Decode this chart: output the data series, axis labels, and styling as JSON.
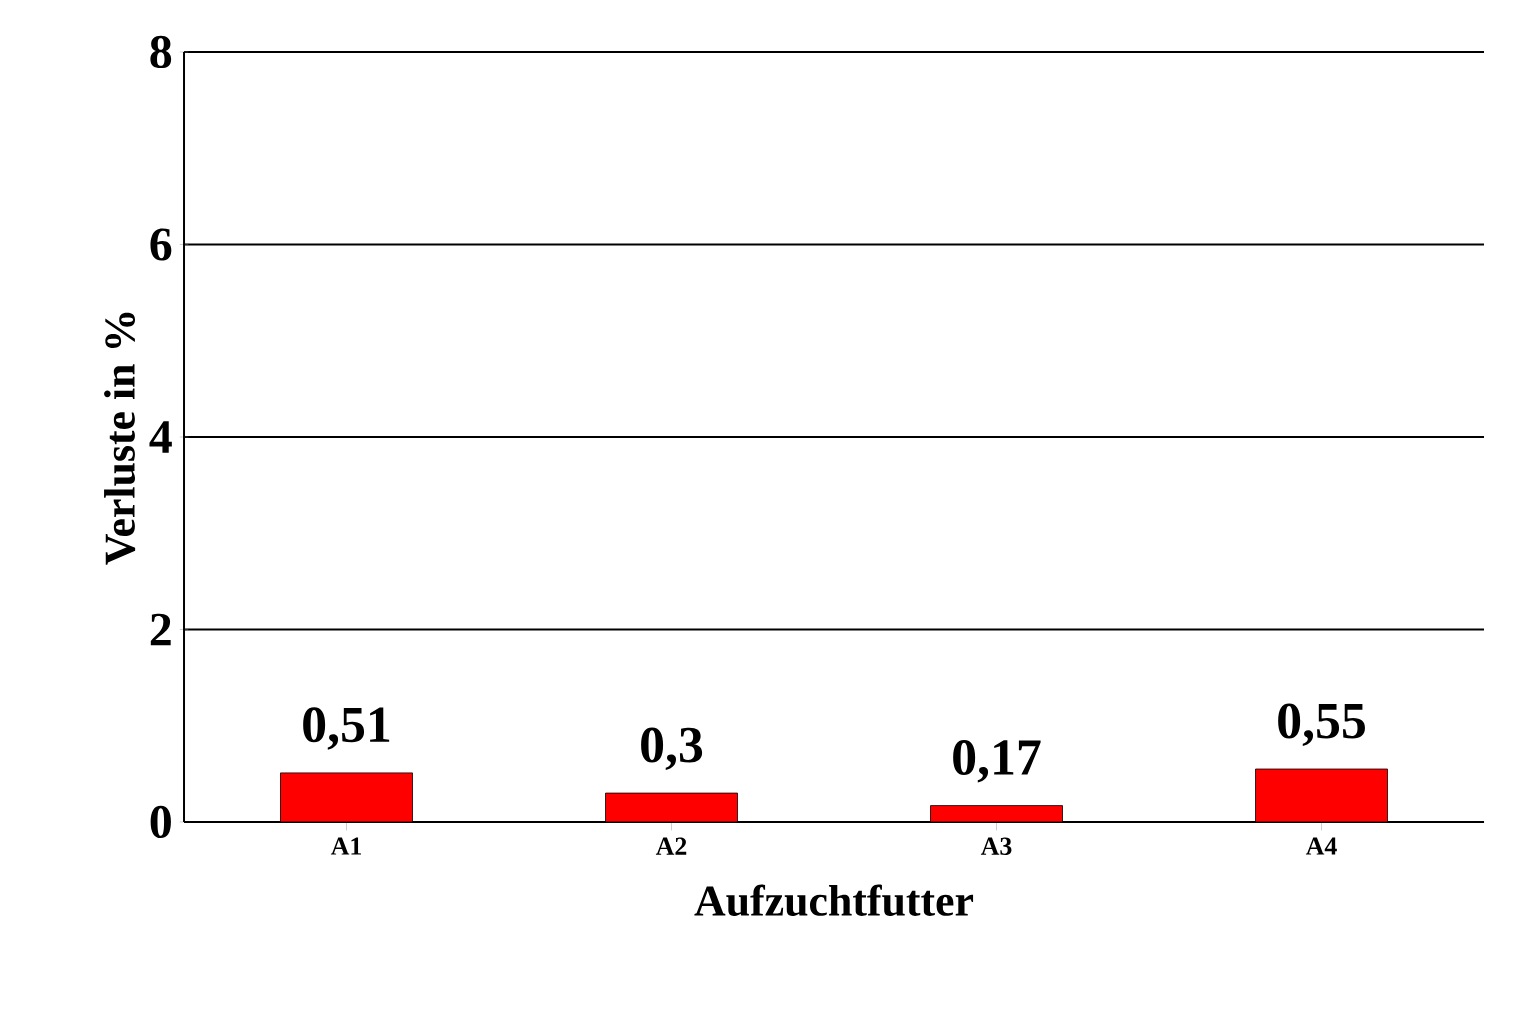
{
  "chart_data": {
    "type": "bar",
    "xlabel": "Aufzuchtfutter",
    "ylabel": "Verluste in %",
    "categories": [
      "A1",
      "A2",
      "A3",
      "A4"
    ],
    "values": [
      0.51,
      0.3,
      0.17,
      0.55
    ],
    "value_labels": [
      "0,51",
      "0,3",
      "0,17",
      "0,55"
    ],
    "color": "#ff0000",
    "ylim": [
      0,
      8
    ],
    "yticks": [
      0,
      2,
      4,
      6,
      8
    ],
    "grid": "y"
  }
}
